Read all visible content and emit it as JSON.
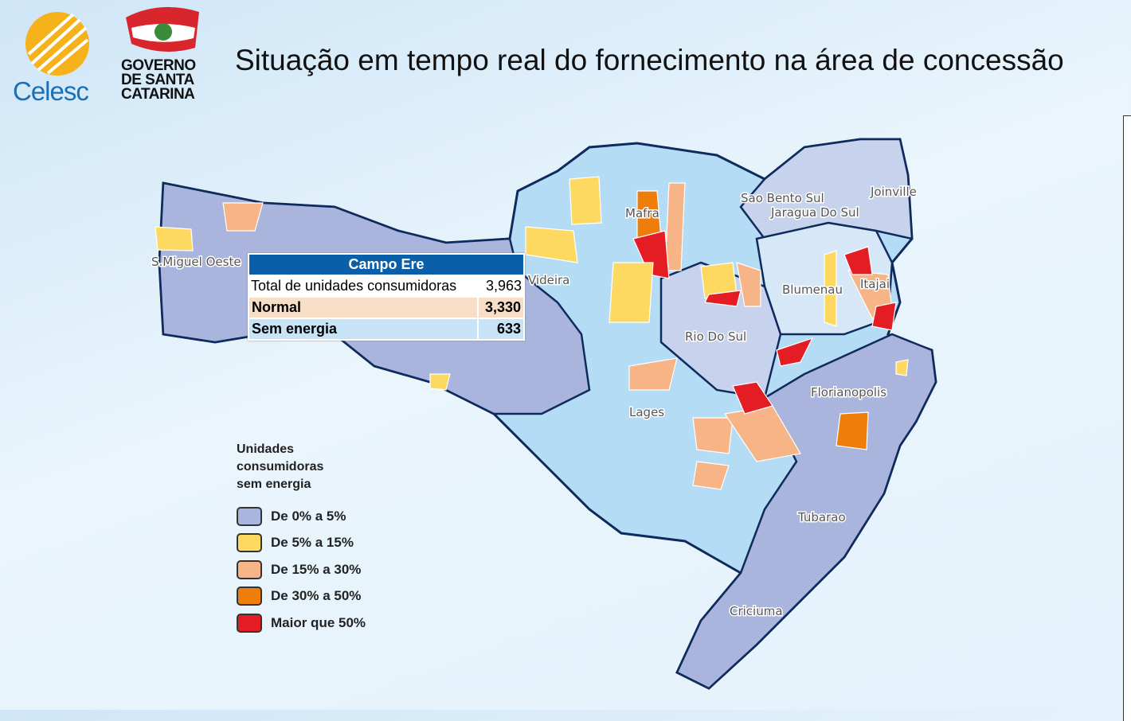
{
  "header": {
    "celesc_logo": "Celesc",
    "government_logo": [
      "GOVERNO",
      "DE SANTA",
      "CATARINA"
    ],
    "title": "Situação em tempo real do fornecimento na área de concessão"
  },
  "map": {
    "regions": [
      "S.Miguel Oeste",
      "Videira",
      "Mafra",
      "Sao Bento Sul",
      "Jaragua Do Sul",
      "Joinville",
      "Blumenau",
      "Itajai",
      "Rio Do Sul",
      "Florianopolis",
      "Lages",
      "Tubarao",
      "Criciuma"
    ]
  },
  "tooltip": {
    "title": "Campo Ere",
    "rows": [
      [
        "Total de unidades consumidoras",
        "3,963"
      ],
      [
        "Normal",
        "3,330"
      ],
      [
        "Sem energia",
        "633"
      ]
    ]
  },
  "legend": {
    "title": [
      "Unidades",
      "consumidoras",
      "sem energia"
    ],
    "items": [
      {
        "label": "De 0% a 5%",
        "color": "#aab5dd"
      },
      {
        "label": "De 5% a 15%",
        "color": "#fdd962"
      },
      {
        "label": "De 15% a 30%",
        "color": "#f7b486"
      },
      {
        "label": "De 30% a 50%",
        "color": "#ef7d0a"
      },
      {
        "label": "Maior que 50%",
        "color": "#e41d25"
      }
    ]
  }
}
